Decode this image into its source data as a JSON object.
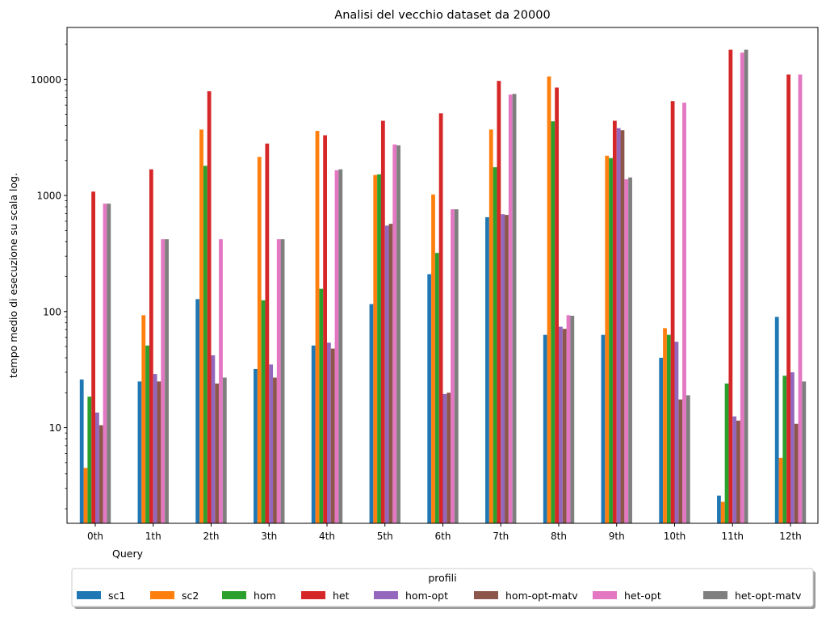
{
  "chart_data": {
    "type": "bar",
    "title": "Analisi del vecchio dataset da 20000",
    "xlabel": "Query",
    "ylabel": "tempo medio di esecuzione su scala log.",
    "yscale": "log",
    "ylim": [
      1.5,
      28000
    ],
    "yticks": [
      10,
      100,
      1000,
      10000
    ],
    "ytick_labels": [
      "10",
      "100",
      "1000",
      "10000"
    ],
    "grid": false,
    "categories": [
      "0th",
      "1th",
      "2th",
      "3th",
      "4th",
      "5th",
      "6th",
      "7th",
      "8th",
      "9th",
      "10th",
      "11th",
      "12th"
    ],
    "legend": {
      "title": "profili",
      "placement": "bottom-center"
    },
    "series": [
      {
        "name": "sc1",
        "color": "#1f77b4",
        "values": [
          26,
          25,
          128,
          32,
          51,
          116,
          210,
          650,
          63,
          63,
          40,
          2.6,
          90
        ]
      },
      {
        "name": "sc2",
        "color": "#ff7f0e",
        "values": [
          4.5,
          93,
          3700,
          2150,
          3600,
          1500,
          1020,
          3700,
          10600,
          2200,
          72,
          2.3,
          5.5
        ]
      },
      {
        "name": "hom",
        "color": "#2ca02c",
        "values": [
          18.5,
          51,
          1800,
          125,
          157,
          1520,
          320,
          1750,
          4350,
          2100,
          63,
          24,
          28
        ]
      },
      {
        "name": "het",
        "color": "#d62728",
        "values": [
          1080,
          1680,
          7900,
          2800,
          3300,
          4400,
          5100,
          9700,
          8500,
          4400,
          6500,
          18000,
          11000
        ]
      },
      {
        "name": "hom-opt",
        "color": "#9467bd",
        "values": [
          13.5,
          29,
          42,
          35,
          54,
          550,
          19.5,
          690,
          74,
          3800,
          55,
          12.5,
          30
        ]
      },
      {
        "name": "hom-opt-matv",
        "color": "#8c564b",
        "values": [
          10.5,
          25,
          24,
          27,
          48,
          570,
          20,
          680,
          71,
          3650,
          17.5,
          11.5,
          10.8
        ]
      },
      {
        "name": "het-opt",
        "color": "#e377c2",
        "values": [
          850,
          420,
          420,
          420,
          1650,
          2750,
          760,
          7400,
          93,
          1380,
          6300,
          17000,
          11000
        ]
      },
      {
        "name": "het-opt-matv",
        "color": "#7f7f7f",
        "values": [
          850,
          420,
          27,
          420,
          1680,
          2700,
          760,
          7500,
          92,
          1430,
          19,
          18000,
          25
        ]
      }
    ]
  }
}
